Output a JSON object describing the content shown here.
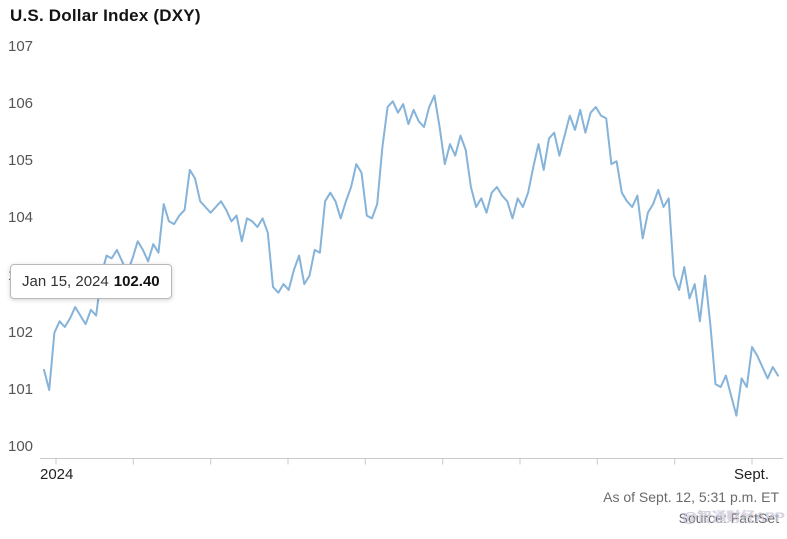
{
  "header": {
    "title": "U.S. Dollar Index (DXY)"
  },
  "tooltip": {
    "date": "Jan 15, 2024",
    "value": "102.40"
  },
  "footer": {
    "as_of": "As of Sept. 12, 5:31 p.m. ET",
    "source": "Source: FactSet"
  },
  "watermark": {
    "text": "@智通财经APP"
  },
  "chart_data": {
    "type": "line",
    "title": "U.S. Dollar Index (DXY)",
    "series_name": "DXY",
    "x_start": "Jan 2024",
    "x_end": "Sept. 12, 2024",
    "ylim": [
      100,
      107
    ],
    "yticks": [
      107,
      106,
      105,
      104,
      103,
      102,
      101,
      100
    ],
    "xtick_labels": [
      "2024",
      "Sept."
    ],
    "grid": "off",
    "legend": "none",
    "line_color": "#85b3d9",
    "axis_color": "#c9c9c9",
    "annotation": {
      "date": "Jan 15, 2024",
      "value": 102.4
    },
    "values": [
      101.35,
      101.0,
      102.0,
      102.2,
      102.1,
      102.25,
      102.45,
      102.3,
      102.15,
      102.4,
      102.3,
      103.0,
      103.35,
      103.3,
      103.45,
      103.25,
      103.05,
      103.3,
      103.6,
      103.45,
      103.25,
      103.55,
      103.4,
      104.25,
      103.95,
      103.9,
      104.05,
      104.15,
      104.85,
      104.7,
      104.3,
      104.2,
      104.1,
      104.2,
      104.3,
      104.15,
      103.95,
      104.05,
      103.6,
      104.0,
      103.95,
      103.85,
      104.0,
      103.75,
      102.8,
      102.7,
      102.85,
      102.75,
      103.1,
      103.35,
      102.85,
      103.0,
      103.45,
      103.4,
      104.3,
      104.45,
      104.3,
      104.0,
      104.3,
      104.55,
      104.95,
      104.8,
      104.05,
      104.0,
      104.25,
      105.25,
      105.95,
      106.05,
      105.85,
      106.0,
      105.65,
      105.9,
      105.7,
      105.6,
      105.95,
      106.15,
      105.6,
      104.95,
      105.3,
      105.1,
      105.45,
      105.2,
      104.55,
      104.2,
      104.35,
      104.1,
      104.45,
      104.55,
      104.4,
      104.3,
      104.0,
      104.35,
      104.2,
      104.45,
      104.9,
      105.3,
      104.85,
      105.4,
      105.5,
      105.1,
      105.45,
      105.8,
      105.55,
      105.9,
      105.5,
      105.85,
      105.95,
      105.8,
      105.75,
      104.95,
      105.0,
      104.45,
      104.3,
      104.2,
      104.4,
      103.65,
      104.1,
      104.25,
      104.5,
      104.2,
      104.35,
      103.0,
      102.75,
      103.15,
      102.6,
      102.85,
      102.2,
      103.0,
      102.15,
      101.1,
      101.05,
      101.25,
      100.9,
      100.55,
      101.2,
      101.05,
      101.75,
      101.6,
      101.4,
      101.2,
      101.4,
      101.25
    ]
  }
}
